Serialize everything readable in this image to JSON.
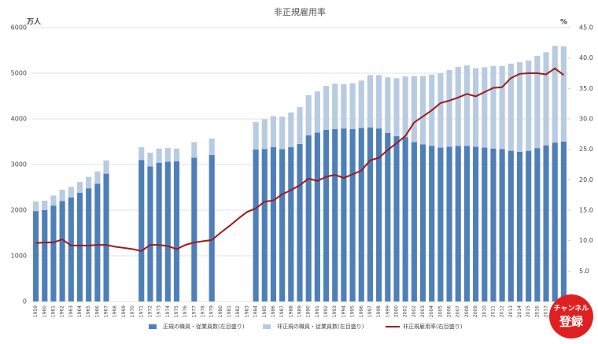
{
  "chart_data": {
    "type": "bar",
    "stacked": true,
    "title": "非正規雇用率",
    "y_unit": "万人",
    "y2_unit": "%",
    "categories": [
      "1959",
      "1960",
      "1961",
      "1962",
      "1963",
      "1964",
      "1965",
      "1966",
      "1967",
      "1968",
      "1969",
      "1970",
      "1971",
      "1972",
      "1973",
      "1974",
      "1975",
      "1976",
      "1977",
      "1978",
      "1979",
      "1980",
      "1981",
      "1982",
      "1983",
      "1984",
      "1985",
      "1986",
      "1987",
      "1988",
      "1989",
      "1990",
      "1991",
      "1992",
      "1993",
      "1994",
      "1995",
      "1996",
      "1997",
      "1998",
      "1999",
      "2000",
      "2001",
      "2002",
      "2003",
      "2004",
      "2005",
      "2006",
      "2007",
      "2008",
      "2009",
      "2010",
      "2011",
      "2012",
      "2013",
      "2014",
      "2015",
      "2016",
      "2017",
      "2018",
      "2019"
    ],
    "series": [
      {
        "name": "正規の職員・従業員数(左目盛り)",
        "color": "#4f7fb8",
        "axis": "y",
        "values": [
          1980,
          2000,
          2100,
          2200,
          2280,
          2380,
          2480,
          2580,
          2800,
          null,
          null,
          null,
          3100,
          2960,
          3040,
          3060,
          3070,
          null,
          3150,
          null,
          3210,
          null,
          null,
          null,
          null,
          3330,
          3340,
          3380,
          3340,
          3380,
          3450,
          3640,
          3700,
          3760,
          3780,
          3790,
          3780,
          3800,
          3810,
          3790,
          3690,
          3620,
          3600,
          3490,
          3440,
          3410,
          3370,
          3390,
          3410,
          3410,
          3390,
          3370,
          3350,
          3340,
          3300,
          3280,
          3300,
          3360,
          3420,
          3480,
          3500
        ]
      },
      {
        "name": "非正規の職員・従業員数(左目盛り)",
        "color": "#b8cbe0",
        "axis": "y",
        "values": [
          210,
          210,
          220,
          250,
          230,
          240,
          250,
          270,
          290,
          null,
          null,
          null,
          280,
          300,
          310,
          300,
          280,
          null,
          340,
          null,
          360,
          null,
          null,
          null,
          null,
          600,
          650,
          680,
          710,
          760,
          810,
          880,
          900,
          960,
          990,
          970,
          1000,
          1040,
          1150,
          1170,
          1220,
          1270,
          1330,
          1450,
          1500,
          1560,
          1630,
          1680,
          1730,
          1760,
          1720,
          1760,
          1810,
          1820,
          1910,
          1960,
          1980,
          2020,
          2040,
          2120,
          2090
        ]
      },
      {
        "name": "非正規雇用率(右目盛り)",
        "color": "#9b1c1c",
        "axis": "y2",
        "type": "line",
        "values": [
          9.6,
          9.7,
          9.7,
          10.2,
          9.2,
          9.2,
          9.2,
          9.3,
          9.3,
          9.0,
          8.8,
          8.6,
          8.3,
          9.3,
          9.3,
          9.1,
          8.6,
          9.3,
          9.7,
          9.9,
          10.1,
          11.3,
          12.4,
          13.6,
          14.7,
          15.3,
          16.4,
          16.6,
          17.6,
          18.3,
          19.1,
          20.2,
          19.8,
          20.5,
          20.8,
          20.3,
          20.9,
          21.5,
          23.2,
          23.6,
          24.9,
          26.0,
          27.2,
          29.4,
          30.4,
          31.4,
          32.6,
          33.0,
          33.5,
          34.1,
          33.7,
          34.4,
          35.1,
          35.2,
          36.7,
          37.4,
          37.5,
          37.5,
          37.3,
          38.3,
          37.2
        ]
      }
    ],
    "ylim": [
      0,
      6000
    ],
    "yticks": [
      0,
      1000,
      2000,
      3000,
      4000,
      5000,
      6000
    ],
    "y2lim": [
      0,
      45
    ],
    "y2ticks": [
      {
        "value": 5,
        "label": "5.0"
      },
      {
        "value": 10,
        "label": "10.0"
      },
      {
        "value": 15,
        "label": "15.0"
      },
      {
        "value": 20,
        "label": "20.0"
      },
      {
        "value": 25,
        "label": "25.0"
      },
      {
        "value": 30,
        "label": "30.0"
      },
      {
        "value": 35,
        "label": "35.0"
      },
      {
        "value": 40,
        "label": "40.0"
      },
      {
        "value": 45,
        "label": "45.0"
      }
    ],
    "grid": true,
    "legend": "bottom"
  },
  "badge": {
    "line1": "チャンネル",
    "line2": "登録"
  }
}
